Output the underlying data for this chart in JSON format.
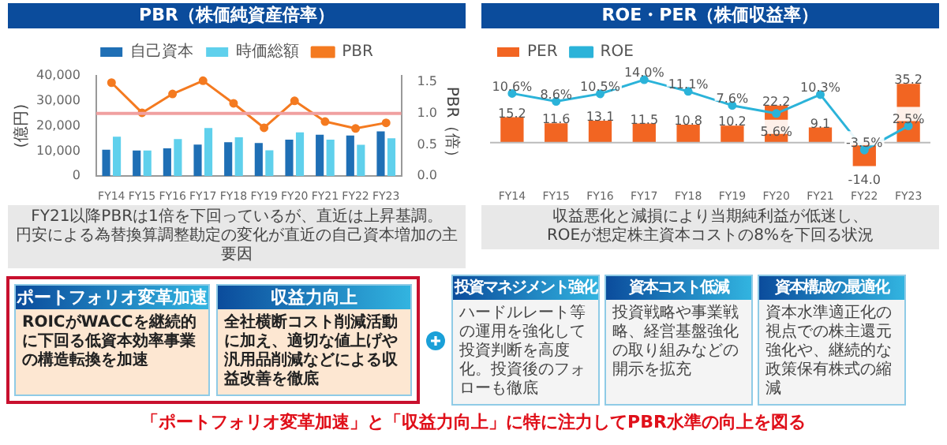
{
  "chart_data": [
    {
      "type": "bar",
      "title": "PBR（株価純資産倍率）",
      "ylabel": "(億円)",
      "y2label": "PBR（倍）",
      "categories": [
        "FY14",
        "FY15",
        "FY16",
        "FY17",
        "FY18",
        "FY19",
        "FY20",
        "FY21",
        "FY22",
        "FY23"
      ],
      "series": [
        {
          "name": "自己資本",
          "color": "#1f6fb5",
          "values": [
            10500,
            10200,
            11100,
            12600,
            13500,
            13200,
            14500,
            16500,
            16200,
            17800
          ]
        },
        {
          "name": "時価総額",
          "color": "#5fd0ec",
          "values": [
            15700,
            10200,
            14800,
            19200,
            15500,
            10300,
            17400,
            14500,
            12500,
            15100
          ]
        },
        {
          "name": "PBR",
          "type": "line",
          "axis": "y2",
          "color": "#f47a20",
          "values": [
            1.49,
            1.01,
            1.31,
            1.52,
            1.16,
            0.77,
            1.2,
            0.87,
            0.76,
            0.85
          ]
        }
      ],
      "ylim": [
        0,
        40000
      ],
      "yticks": [
        0,
        {
          "value": 10000,
          "label": "10,000"
        },
        {
          "value": 20000,
          "label": "20,000"
        },
        {
          "value": 30000,
          "label": "30,000"
        },
        {
          "value": 40000,
          "label": "40,000"
        }
      ],
      "y2lim": [
        0,
        1.6
      ],
      "y2ticks": [
        {
          "value": 0,
          "label": "0.0"
        },
        {
          "value": 0.5,
          "label": "0.5"
        },
        {
          "value": 1,
          "label": "1.0"
        },
        {
          "value": 1.5,
          "label": "1.5"
        }
      ],
      "ref_lines": [
        {
          "axis": "y2",
          "value": 1,
          "color": "#f0a0a0"
        }
      ],
      "legend": "top",
      "marker": "circle",
      "annotations": [
        "FY21以降PBRは1倍を下回っているが、直近は上昇基調。",
        "円安による為替換算調整勘定の変化が直近の自己資本増加の主要因"
      ]
    },
    {
      "type": "bar",
      "title": "ROE・PER（株価収益率）",
      "categories": [
        "FY14",
        "FY15",
        "FY16",
        "FY17",
        "FY18",
        "FY19",
        "FY20",
        "FY21",
        "FY22",
        "FY23"
      ],
      "series": [
        {
          "name": "PER",
          "color": "#f26522",
          "values": [
            15.2,
            11.6,
            13.1,
            11.5,
            10.8,
            10.2,
            22.2,
            9.1,
            -14.0,
            35.2
          ],
          "value_labels": [
            "15.2",
            "11.6",
            "13.1",
            "11.5",
            "10.8",
            "10.2",
            "22.2",
            "9.1",
            "-14.0",
            "35.2"
          ]
        },
        {
          "name": "ROE",
          "type": "line",
          "axis": "y2",
          "color": "#2bb3d9",
          "values": [
            10.6,
            8.6,
            10.5,
            14.0,
            11.1,
            7.6,
            5.6,
            10.3,
            -3.5,
            2.5
          ],
          "value_labels": [
            "10.6%",
            "8.6%",
            "10.5%",
            "14.0%",
            "11.1%",
            "7.6%",
            "5.6%",
            "10.3%",
            "-3.5%",
            "2.5%"
          ]
        }
      ],
      "legend": "top left",
      "marker": "circle",
      "tick_labels": "x",
      "annotations": [
        "収益悪化と減損により当期純利益が低迷し、",
        "ROEが想定株主資本コストの8%を下回る状況"
      ]
    },
    {
      "type": "other",
      "annotations": [
        "ポートフォリオ変革加速",
        "ROICがWACCを継続的に下回る低資本効率事業の構造転換を加速",
        "収益力向上",
        "全社横断コスト削減活動に加え、適切な値上げや汎用品削減などによる収益改善を徹底",
        "投資マネジメント強化",
        "ハードルレート等の運用を強化して投資判断を高度化。投資後のフォローも徹底",
        "資本コスト低減",
        "投資戦略や事業戦略、経営基盤強化の取り組みなどの開示を拡充",
        "資本構成の最適化",
        "資本水準適正化の視点での株主還元強化や、継続的な政策保有株式の縮減",
        "「ポートフォリオ変革加速」と「収益力向上」に特に注力してPBR水準の向上を図る"
      ]
    }
  ]
}
